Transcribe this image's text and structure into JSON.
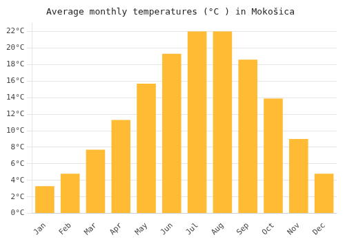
{
  "chart_data": {
    "type": "bar",
    "title": "Average monthly temperatures (°C ) in Mokošica",
    "categories": [
      "Jan",
      "Feb",
      "Mar",
      "Apr",
      "May",
      "Jun",
      "Jul",
      "Aug",
      "Sep",
      "Oct",
      "Nov",
      "Dec"
    ],
    "values": [
      3.3,
      4.8,
      7.7,
      11.3,
      15.7,
      19.3,
      22.0,
      22.0,
      18.6,
      13.9,
      9.0,
      4.8
    ],
    "color": "#FFBB33",
    "ylim": [
      0,
      23.0
    ],
    "yticks": [
      {
        "value": 0,
        "label": "0°C"
      },
      {
        "value": 2,
        "label": "2°C"
      },
      {
        "value": 4,
        "label": "4°C"
      },
      {
        "value": 6,
        "label": "6°C"
      },
      {
        "value": 8,
        "label": "8°C"
      },
      {
        "value": 10,
        "label": "10°C"
      },
      {
        "value": 12,
        "label": "12°C"
      },
      {
        "value": 14,
        "label": "14°C"
      },
      {
        "value": 16,
        "label": "16°C"
      },
      {
        "value": 18,
        "label": "18°C"
      },
      {
        "value": 20,
        "label": "20°C"
      },
      {
        "value": 22,
        "label": "22°C"
      }
    ],
    "grid": true
  }
}
